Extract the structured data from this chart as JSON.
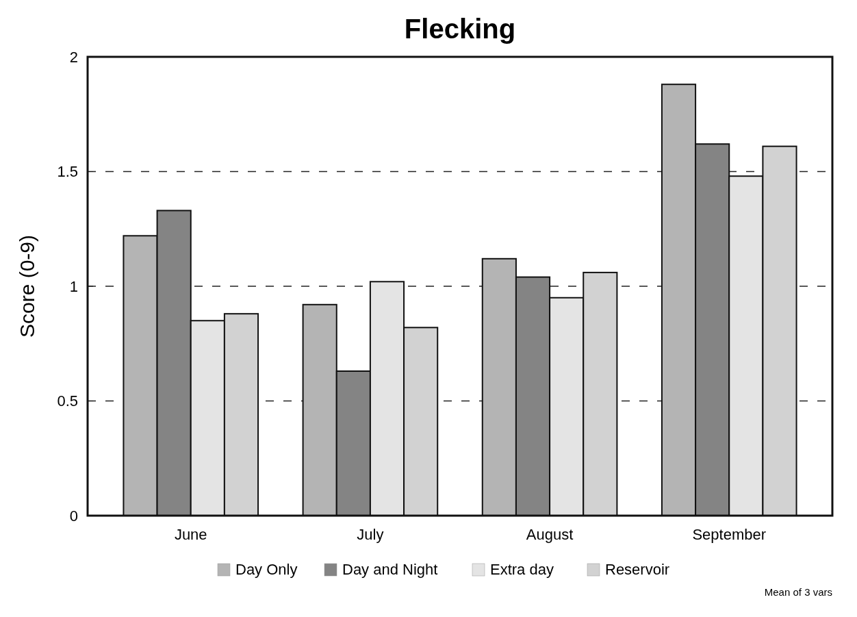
{
  "chart_data": {
    "type": "bar",
    "title": "Flecking",
    "ylabel": "Score (0-9)",
    "categories": [
      "June",
      "July",
      "August",
      "September"
    ],
    "series": [
      {
        "name": "Day Only",
        "color": "#b4b4b4",
        "values": [
          1.22,
          0.92,
          1.12,
          1.88
        ]
      },
      {
        "name": "Day and Night",
        "color": "#848484",
        "values": [
          1.33,
          0.63,
          1.04,
          1.62
        ]
      },
      {
        "name": "Extra day",
        "color": "#e4e4e4",
        "values": [
          0.85,
          1.02,
          0.95,
          1.48
        ]
      },
      {
        "name": "Reservoir",
        "color": "#d2d2d2",
        "values": [
          0.88,
          0.82,
          1.06,
          1.61
        ]
      }
    ],
    "ylim": [
      0,
      2
    ],
    "yticks": [
      0,
      0.5,
      1,
      1.5,
      2
    ],
    "grid": "y",
    "legend": "bottom",
    "annotations": [
      "Mean of 3 vars"
    ]
  }
}
